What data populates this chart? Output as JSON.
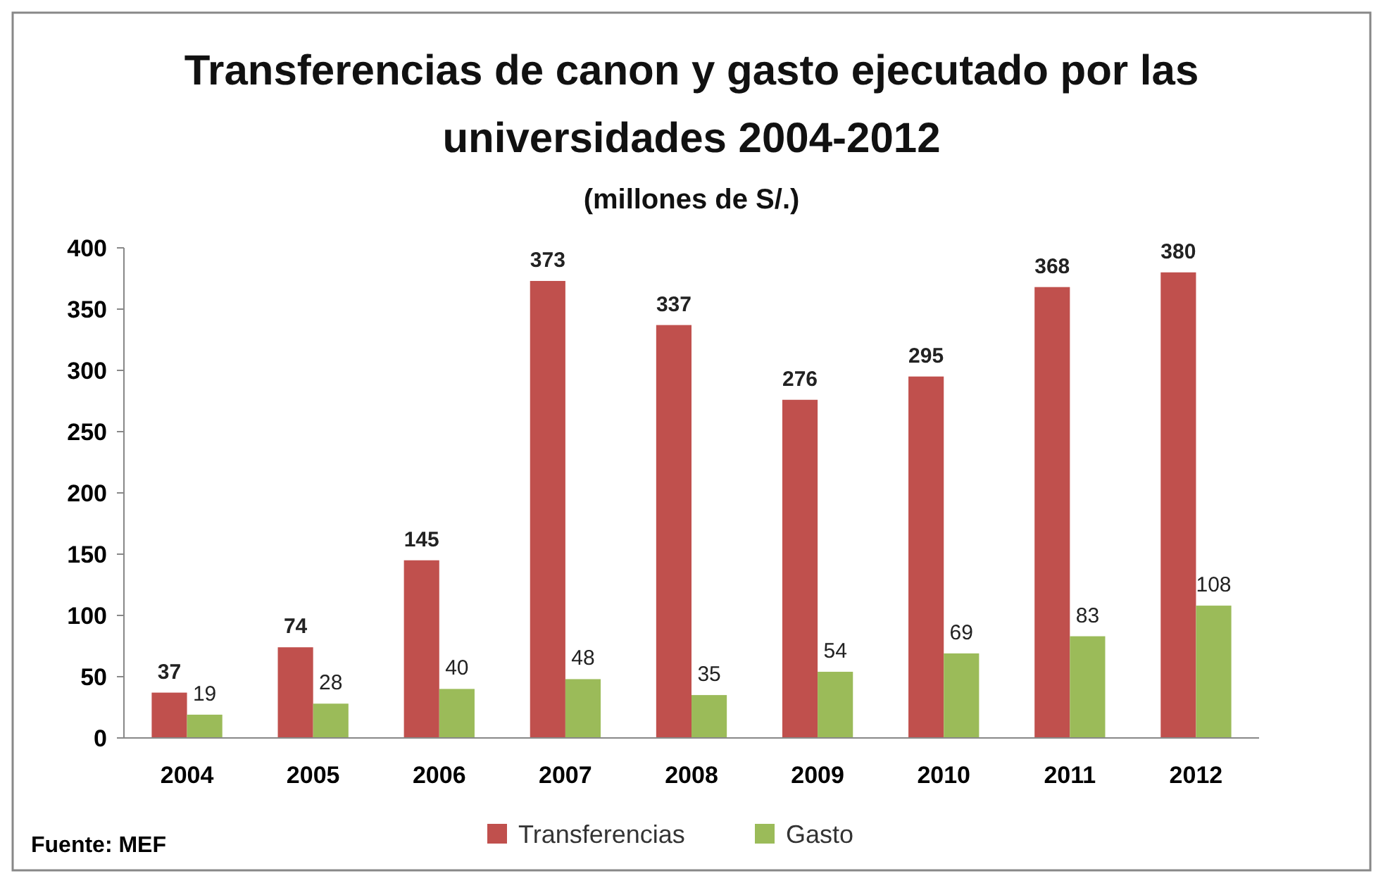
{
  "chart_data": {
    "type": "bar",
    "title": "Transferencias de canon y gasto ejecutado por las universidades 2004-2012",
    "subtitle": "(millones de S/.)",
    "categories": [
      "2004",
      "2005",
      "2006",
      "2007",
      "2008",
      "2009",
      "2010",
      "2011",
      "2012"
    ],
    "series": [
      {
        "name": "Transferencias",
        "color": "#c0504d",
        "values": [
          37,
          74,
          145,
          373,
          337,
          276,
          295,
          368,
          380
        ]
      },
      {
        "name": "Gasto",
        "color": "#9bbb59",
        "values": [
          19,
          28,
          40,
          48,
          35,
          54,
          69,
          83,
          108
        ]
      }
    ],
    "ylim": [
      0,
      400
    ],
    "yticks": [
      0,
      50,
      100,
      150,
      200,
      250,
      300,
      350,
      400
    ],
    "data_labels": true,
    "legend": "bottom",
    "grid": false,
    "annotations": [
      "Fuente: MEF"
    ]
  }
}
